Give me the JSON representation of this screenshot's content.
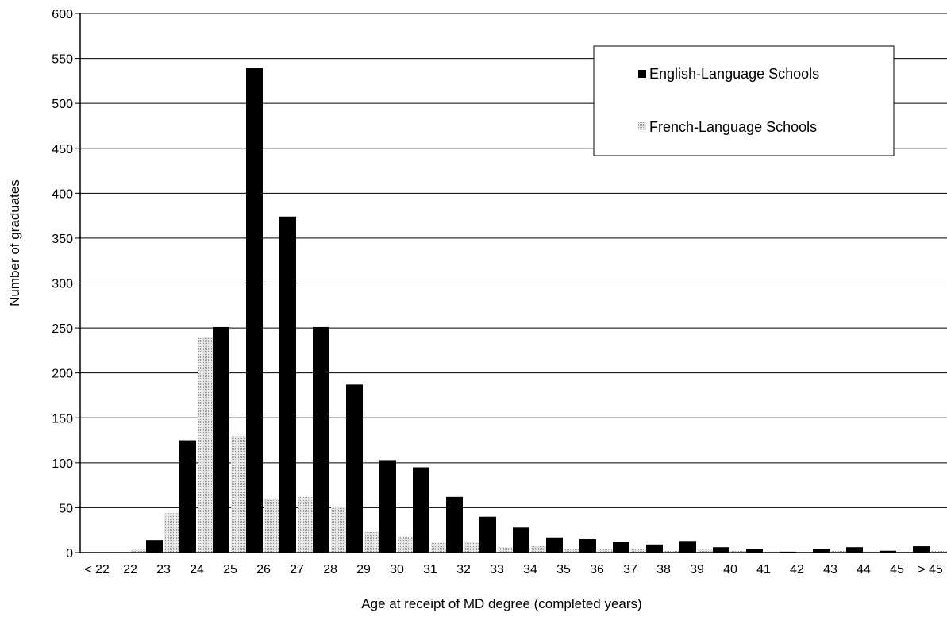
{
  "chart_data": {
    "type": "bar",
    "title": "",
    "xlabel": "Age at receipt of MD degree (completed years)",
    "ylabel": "Number of graduates",
    "ylim": [
      0,
      600
    ],
    "yticks": [
      "0",
      "50",
      "100",
      "150",
      "200",
      "250",
      "300",
      "350",
      "400",
      "450",
      "500",
      "550",
      "600"
    ],
    "grid": true,
    "legend_position": "top-right",
    "categories": [
      "< 22",
      "22",
      "23",
      "24",
      "25",
      "26",
      "27",
      "28",
      "29",
      "30",
      "31",
      "32",
      "33",
      "34",
      "35",
      "36",
      "37",
      "38",
      "39",
      "40",
      "41",
      "42",
      "43",
      "44",
      "45",
      "> 45"
    ],
    "series": [
      {
        "name": "English-Language Schools",
        "color": "#000000",
        "values": [
          0,
          0,
          14,
          125,
          251,
          539,
          374,
          251,
          187,
          103,
          95,
          62,
          40,
          28,
          17,
          15,
          12,
          9,
          13,
          6,
          4,
          1,
          4,
          6,
          2,
          7
        ]
      },
      {
        "name": "French-Language Schools",
        "color": "#cccccc",
        "values": [
          0,
          3,
          44,
          240,
          130,
          60,
          62,
          51,
          23,
          18,
          11,
          12,
          6,
          7,
          4,
          4,
          4,
          2,
          3,
          2,
          1,
          0,
          2,
          1,
          1,
          2
        ]
      }
    ]
  }
}
